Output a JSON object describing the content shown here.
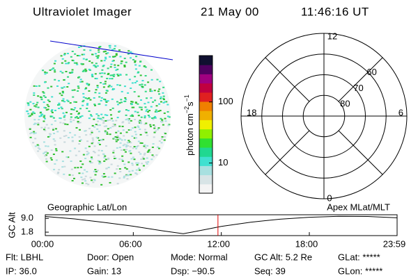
{
  "header": {
    "instrument": "Ultraviolet Imager",
    "date": "21 May 00",
    "time": "11:46:16 UT"
  },
  "colorbar": {
    "label": "photon cm",
    "exp1": "−2",
    "unit2": "s",
    "exp2": "−1",
    "log_scale": true,
    "lim": [
      3.2,
      575
    ],
    "ticks": [
      10,
      100
    ],
    "colors": [
      "#f4f4f4",
      "#d8e4e6",
      "#a8e0e0",
      "#40e0d0",
      "#20d890",
      "#30e030",
      "#90f000",
      "#f0f000",
      "#f0b000",
      "#f08000",
      "#e02020",
      "#c00040",
      "#a00080",
      "#500060",
      "#101030"
    ]
  },
  "polar": {
    "rlim": [
      90,
      50
    ],
    "rticks": [
      60,
      70,
      80
    ],
    "mlt_labels": [
      "12",
      "18",
      "6",
      "0"
    ]
  },
  "chart_data": {
    "type": "line",
    "ylabel": "GC Alt",
    "annotations": [
      "Geographic Lat/Lon",
      "Apex MLat/MLT"
    ],
    "x": [
      0,
      2,
      4,
      6,
      8,
      9.4,
      10,
      12,
      14,
      16,
      18,
      20,
      22,
      23.983
    ],
    "series": [
      {
        "name": "GC Alt",
        "color": "#000000",
        "values": [
          10.0,
          8.7,
          6.9,
          4.9,
          2.5,
          1.0,
          1.8,
          4.8,
          7.0,
          8.6,
          9.6,
          10.1,
          10.0,
          9.3
        ]
      }
    ],
    "current_time": 11.771,
    "current_color": "#e00000",
    "xlim": [
      0,
      23.983
    ],
    "ylim": [
      0,
      10.9
    ],
    "xticks": [
      {
        "value": 0,
        "label": "00:00"
      },
      {
        "value": 6,
        "label": "06:00"
      },
      {
        "value": 12,
        "label": "12:00"
      },
      {
        "value": 18,
        "label": "18:00"
      },
      {
        "value": 23.983,
        "label": "23:59"
      }
    ],
    "yticks": [
      {
        "value": 9,
        "label": "9.0"
      },
      {
        "value": 1.8,
        "label": "1.8"
      }
    ]
  },
  "status": [
    [
      "Flt: LBHL",
      "Door: Open",
      "Mode: Normal",
      "GC Alt: 5.2 Re",
      "GLat: *****"
    ],
    [
      "IP: 36.0",
      "Gain: 13",
      "Dsp: −90.5",
      "Seq: 39",
      "GLon: *****"
    ]
  ]
}
